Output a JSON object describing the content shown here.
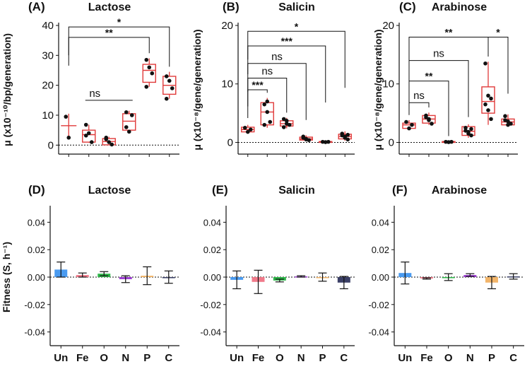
{
  "figure": {
    "y_label_top": "μ (x10⁻¹⁰/bp/generation)",
    "y_label_top_gene": "μ (x10⁻⁸/gene/generation)",
    "y_label_bottom": "Fitness (S, h⁻¹)"
  },
  "chart_data": [
    {
      "id": "A",
      "panel_label": "(A)",
      "title": "Lactose",
      "type": "boxplot",
      "ylabel": "μ (x10⁻¹⁰/bp/generation)",
      "ylim": [
        -3,
        40
      ],
      "yticks": [
        "0",
        "10",
        "20",
        "30",
        "40"
      ],
      "ytick_values": [
        0,
        10,
        20,
        30,
        40
      ],
      "categories": [
        "Un",
        "Fe",
        "O",
        "N",
        "P",
        "C"
      ],
      "groups": [
        {
          "name": "Un",
          "points": [
            9.5,
            2.5
          ],
          "line": 6.5,
          "whisker": [
            2.5,
            10.5
          ],
          "style": "line"
        },
        {
          "name": "Fe",
          "points": [
            6.8,
            4.0,
            1.0,
            3.2
          ],
          "box": [
            1.0,
            5.0
          ],
          "median": 3.5,
          "whisker": [
            0.8,
            6.8
          ],
          "style": "box"
        },
        {
          "name": "O",
          "points": [
            2.5,
            1.0,
            0.2,
            2.0
          ],
          "box": [
            0.1,
            2.2
          ],
          "median": 1.2,
          "whisker": [
            0.0,
            2.8
          ],
          "style": "box"
        },
        {
          "name": "N",
          "points": [
            11.0,
            4.5,
            10.0,
            6.0
          ],
          "box": [
            5.0,
            10.5
          ],
          "median": 8.0,
          "whisker": [
            4.5,
            11.5
          ],
          "style": "box"
        },
        {
          "name": "P",
          "points": [
            28.5,
            26.0,
            24.0,
            19.5
          ],
          "box": [
            21.0,
            27.0
          ],
          "median": 25.0,
          "whisker": [
            19.5,
            29.0
          ],
          "style": "box"
        },
        {
          "name": "C",
          "points": [
            23.0,
            21.5,
            19.0,
            15.5
          ],
          "box": [
            17.0,
            23.0
          ],
          "median": 20.0,
          "whisker": [
            15.5,
            24.5
          ],
          "style": "box"
        }
      ],
      "significance": [
        {
          "label": "*",
          "from": "Un",
          "to": "C",
          "y": 39.5
        },
        {
          "label": "**",
          "from": "Un",
          "to": "P",
          "y": 36.0
        },
        {
          "label": "ns",
          "from": "Fe",
          "to": "N",
          "y": 15.0
        }
      ]
    },
    {
      "id": "B",
      "panel_label": "(B)",
      "title": "Salicin",
      "type": "boxplot",
      "ylabel": "μ (x10⁻⁸/gene/generation)",
      "ylim": [
        -2,
        20
      ],
      "yticks": [
        "0",
        "10",
        "20"
      ],
      "ytick_values": [
        0,
        10,
        20
      ],
      "categories": [
        "Un",
        "Fe",
        "O",
        "N",
        "P",
        "C"
      ],
      "groups": [
        {
          "name": "Un",
          "points": [
            2.5,
            1.8,
            2.2
          ],
          "box": [
            1.8,
            2.6
          ],
          "median": 2.2,
          "whisker": [
            1.6,
            3.0
          ],
          "style": "box"
        },
        {
          "name": "Fe",
          "points": [
            6.5,
            5.2,
            3.5,
            3.0,
            7.0
          ],
          "box": [
            3.0,
            6.8
          ],
          "median": 5.2,
          "whisker": [
            2.5,
            7.6
          ],
          "style": "box"
        },
        {
          "name": "O",
          "points": [
            4.0,
            3.2,
            3.0,
            2.6,
            3.7
          ],
          "box": [
            2.8,
            3.7
          ],
          "median": 3.2,
          "whisker": [
            2.4,
            4.2
          ],
          "style": "box"
        },
        {
          "name": "N",
          "points": [
            1.0,
            0.6,
            0.4,
            0.8,
            0.5
          ],
          "box": [
            0.4,
            0.9
          ],
          "median": 0.6,
          "whisker": [
            0.3,
            1.2
          ],
          "style": "box"
        },
        {
          "name": "P",
          "points": [
            0.1,
            0.05,
            0.1
          ],
          "box": [
            0.0,
            0.15
          ],
          "median": 0.05,
          "whisker": [
            0.0,
            0.2
          ],
          "style": "box"
        },
        {
          "name": "C",
          "points": [
            1.5,
            1.0,
            0.5,
            1.2,
            0.8,
            1.3
          ],
          "box": [
            0.6,
            1.4
          ],
          "median": 1.0,
          "whisker": [
            0.3,
            1.9
          ],
          "style": "box"
        }
      ],
      "significance": [
        {
          "label": "*",
          "from": "Un",
          "to": "C",
          "y": 19.0
        },
        {
          "label": "***",
          "from": "Un",
          "to": "P",
          "y": 16.5
        },
        {
          "label": "ns",
          "from": "Un",
          "to": "N",
          "y": 13.5
        },
        {
          "label": "ns",
          "from": "Un",
          "to": "O",
          "y": 11.0
        },
        {
          "label": "***",
          "from": "Un",
          "to": "Fe",
          "y": 9.0
        }
      ]
    },
    {
      "id": "C",
      "panel_label": "(C)",
      "title": "Arabinose",
      "type": "boxplot",
      "ylabel": "μ (x10⁻⁸/gene/generation)",
      "ylim": [
        -2,
        20
      ],
      "yticks": [
        "0",
        "10",
        "20"
      ],
      "ytick_values": [
        0,
        10,
        20
      ],
      "categories": [
        "Un",
        "Fe",
        "O",
        "N",
        "P",
        "C"
      ],
      "groups": [
        {
          "name": "Un",
          "points": [
            3.5,
            2.4,
            3.0
          ],
          "box": [
            2.4,
            3.3
          ],
          "median": 3.0,
          "whisker": [
            2.2,
            3.8
          ],
          "style": "box"
        },
        {
          "name": "Fe",
          "points": [
            4.6,
            3.8,
            3.2,
            4.3,
            4.0
          ],
          "box": [
            3.3,
            4.6
          ],
          "median": 4.0,
          "whisker": [
            3.0,
            5.1
          ],
          "style": "box"
        },
        {
          "name": "O",
          "points": [
            0.1,
            0.05,
            0.1
          ],
          "box": [
            0.0,
            0.15
          ],
          "median": 0.05,
          "whisker": [
            0.0,
            0.2
          ],
          "style": "box"
        },
        {
          "name": "N",
          "points": [
            2.5,
            1.5,
            1.2,
            2.0,
            1.8,
            2.3
          ],
          "box": [
            1.2,
            2.7
          ],
          "median": 1.9,
          "whisker": [
            0.8,
            3.1
          ],
          "style": "box"
        },
        {
          "name": "P",
          "points": [
            13.5,
            8.0,
            7.5,
            6.5,
            5.5,
            4.0
          ],
          "box": [
            5.0,
            9.5
          ],
          "median": 7.0,
          "whisker": [
            3.0,
            13.8
          ],
          "style": "box"
        },
        {
          "name": "C",
          "points": [
            4.5,
            3.6,
            3.2,
            3.8,
            3.0
          ],
          "box": [
            3.0,
            4.0
          ],
          "median": 3.5,
          "whisker": [
            2.7,
            4.8
          ],
          "style": "box"
        }
      ],
      "significance": [
        {
          "label": "**",
          "from": "Un",
          "to": "P",
          "y": 18.0
        },
        {
          "label": "*",
          "from": "P",
          "to": "C",
          "y": 18.0
        },
        {
          "label": "ns",
          "from": "Un",
          "to": "N",
          "y": 14.0
        },
        {
          "label": "**",
          "from": "Un",
          "to": "O",
          "y": 10.5
        },
        {
          "label": "ns",
          "from": "Un",
          "to": "Fe",
          "y": 6.8
        }
      ]
    },
    {
      "id": "D",
      "panel_label": "(D)",
      "title": "Lactose",
      "type": "bar",
      "ylabel": "Fitness (S, h⁻¹)",
      "ylim": [
        -0.05,
        0.05
      ],
      "yticks": [
        "0.04",
        "0.02",
        "0.00",
        "-0.02",
        "-0.04"
      ],
      "ytick_values": [
        0.04,
        0.02,
        0.0,
        -0.02,
        -0.04
      ],
      "categories": [
        "Un",
        "Fe",
        "O",
        "N",
        "P",
        "C"
      ],
      "values": [
        0.0055,
        0.0015,
        0.0025,
        -0.0015,
        0.001,
        0.0
      ],
      "errors": [
        0.0055,
        0.0015,
        0.0015,
        0.0025,
        0.0065,
        0.0045
      ],
      "colors": [
        "#4a9bf0",
        "#f07a8a",
        "#2fb84a",
        "#9a3ad0",
        "#f2b56a",
        "#3a3f66"
      ]
    },
    {
      "id": "E",
      "panel_label": "(E)",
      "title": "Salicin",
      "type": "bar",
      "ylabel": "",
      "ylim": [
        -0.05,
        0.05
      ],
      "yticks": [
        "0.04",
        "0.02",
        "0.00",
        "-0.02",
        "-0.04"
      ],
      "ytick_values": [
        0.04,
        0.02,
        0.0,
        -0.02,
        -0.04
      ],
      "categories": [
        "Un",
        "Fe",
        "O",
        "N",
        "P",
        "C"
      ],
      "values": [
        -0.002,
        -0.0035,
        -0.0025,
        0.0005,
        0.0,
        -0.004
      ],
      "errors": [
        0.0065,
        0.0085,
        0.001,
        0.0005,
        0.003,
        0.0045
      ],
      "colors": [
        "#4a9bf0",
        "#f07a8a",
        "#2fb84a",
        "#9a3ad0",
        "#f2b56a",
        "#3a3f66"
      ]
    },
    {
      "id": "F",
      "panel_label": "(F)",
      "title": "Arabinose",
      "type": "bar",
      "ylabel": "",
      "ylim": [
        -0.05,
        0.05
      ],
      "yticks": [
        "0.04",
        "0.02",
        "0.00",
        "-0.02",
        "-0.04"
      ],
      "ytick_values": [
        0.04,
        0.02,
        0.0,
        -0.02,
        -0.04
      ],
      "categories": [
        "Un",
        "Fe",
        "O",
        "N",
        "P",
        "C"
      ],
      "values": [
        0.003,
        -0.001,
        0.0,
        0.0015,
        -0.004,
        0.0005
      ],
      "errors": [
        0.008,
        0.0005,
        0.0025,
        0.001,
        0.0045,
        0.002
      ],
      "colors": [
        "#4a9bf0",
        "#f07a8a",
        "#2fb84a",
        "#9a3ad0",
        "#f2b56a",
        "#3a3f66"
      ]
    }
  ]
}
